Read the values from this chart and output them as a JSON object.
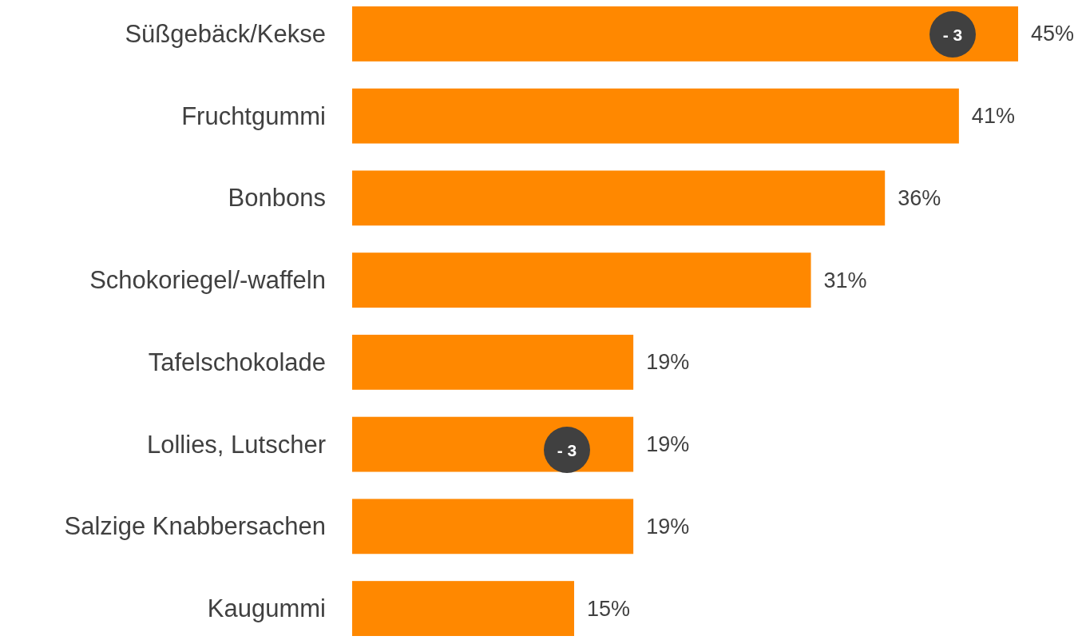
{
  "chart_data": {
    "type": "bar",
    "orientation": "horizontal",
    "categories": [
      "Süßgebäck/Kekse",
      "Fruchtgummi",
      "Bonbons",
      "Schokoriegel/-waffeln",
      "Tafelschokolade",
      "Lollies, Lutscher",
      "Salzige Knabbersachen",
      "Kaugummi"
    ],
    "values": [
      45,
      41,
      36,
      31,
      19,
      19,
      19,
      15
    ],
    "value_labels": [
      "45%",
      "41%",
      "36%",
      "31%",
      "19%",
      "19%",
      "19%",
      "15%"
    ],
    "color": "#ff8800",
    "annotations": [
      "- 3",
      "- 3"
    ]
  }
}
